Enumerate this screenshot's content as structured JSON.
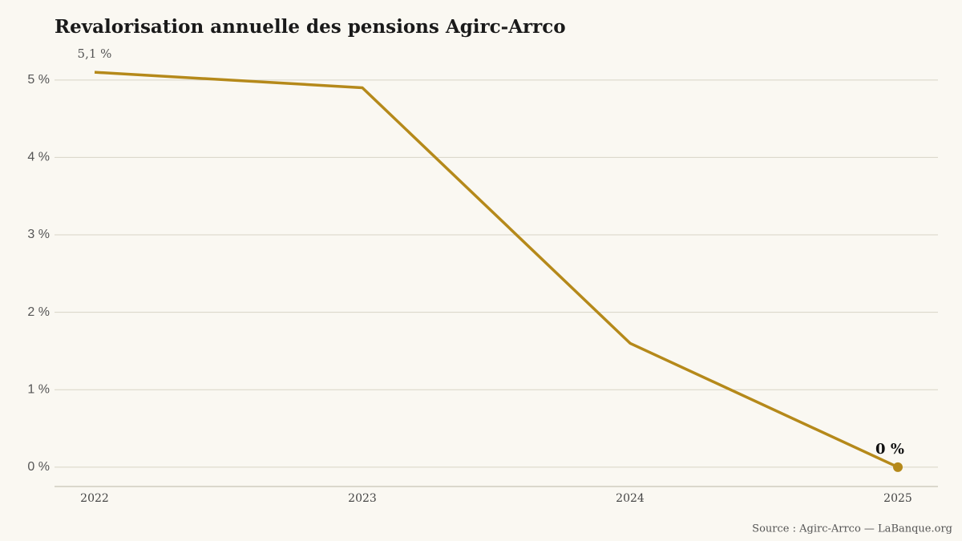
{
  "chart_data": {
    "type": "line",
    "title": "Revalorisation annuelle des pensions Agirc-Arrco",
    "source": "Source : Agirc-Arrco — LaBanque.org",
    "categories": [
      "2022",
      "2023",
      "2024",
      "2025"
    ],
    "series": [
      {
        "name": "Revalorisation",
        "color": "#b5891a",
        "values": [
          5.1,
          4.9,
          1.6,
          0
        ],
        "value_labels": [
          "5,1 %",
          null,
          null,
          "0 %"
        ]
      }
    ],
    "ylim": [
      -0.25,
      5.35
    ],
    "yticks": [
      {
        "value": 0,
        "label": "0 %"
      },
      {
        "value": 1,
        "label": "1 %"
      },
      {
        "value": 2,
        "label": "2 %"
      },
      {
        "value": 3,
        "label": "3 %"
      },
      {
        "value": 4,
        "label": "4 %"
      },
      {
        "value": 5,
        "label": "5 %"
      }
    ],
    "grid": true
  }
}
